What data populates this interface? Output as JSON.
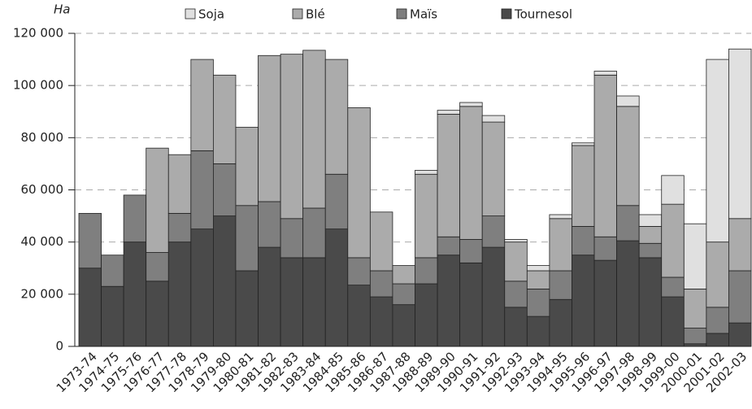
{
  "chart_data": {
    "type": "bar",
    "stacked": true,
    "y_unit_label": "Ha",
    "categories": [
      "1973-74",
      "1974-75",
      "1975-76",
      "1976-77",
      "1977-78",
      "1978-79",
      "1979-80",
      "1980-81",
      "1981-82",
      "1982-83",
      "1983-84",
      "1984-85",
      "1985-86",
      "1986-87",
      "1987-88",
      "1988-89",
      "1989-90",
      "1990-91",
      "1991-92",
      "1992-93",
      "1993-94",
      "1994-95",
      "1995-96",
      "1996-97",
      "1997-98",
      "1998-99",
      "1999-00",
      "2000-01",
      "2001-02",
      "2002-03"
    ],
    "series": [
      {
        "name": "Soja",
        "color": "#e0e0e0",
        "values": [
          0,
          0,
          0,
          0,
          0,
          0,
          0,
          0,
          0,
          0,
          0,
          0,
          0,
          0,
          0,
          1500,
          1500,
          1500,
          2500,
          1000,
          2000,
          1500,
          1000,
          1500,
          4000,
          4500,
          11000,
          25000,
          70000,
          65000
        ]
      },
      {
        "name": "Blé",
        "color": "#ababab",
        "values": [
          0,
          0,
          0,
          40000,
          22500,
          35000,
          34000,
          30000,
          56000,
          63000,
          60500,
          44000,
          57500,
          22500,
          7000,
          32000,
          47000,
          51000,
          36000,
          15000,
          7000,
          20000,
          31000,
          62000,
          38000,
          6500,
          28000,
          15000,
          25000,
          20000
        ]
      },
      {
        "name": "Maïs",
        "color": "#7f7f7f",
        "values": [
          21000,
          12000,
          18000,
          11000,
          11000,
          30000,
          20000,
          25000,
          17500,
          15000,
          19000,
          21000,
          10500,
          10000,
          8000,
          10000,
          7000,
          9000,
          12000,
          10000,
          10500,
          11000,
          11000,
          9000,
          13500,
          5500,
          7500,
          6000,
          10000,
          20000
        ]
      },
      {
        "name": "Tournesol",
        "color": "#4a4a4a",
        "values": [
          30000,
          23000,
          40000,
          25000,
          40000,
          45000,
          50000,
          29000,
          38000,
          34000,
          34000,
          45000,
          23500,
          19000,
          16000,
          24000,
          35000,
          32000,
          38000,
          15000,
          11500,
          18000,
          35000,
          33000,
          40500,
          34000,
          19000,
          1000,
          5000,
          9000
        ]
      }
    ],
    "ylim": [
      0,
      120000
    ],
    "yticks": [
      0,
      {
        "value": 20000,
        "label": "20 000"
      },
      {
        "value": 40000,
        "label": "40 000"
      },
      {
        "value": 60000,
        "label": "60 000"
      },
      {
        "value": 80000,
        "label": "80 000"
      },
      {
        "value": 100000,
        "label": "100 000"
      },
      {
        "value": 120000,
        "label": "120 000"
      }
    ],
    "grid": true
  }
}
